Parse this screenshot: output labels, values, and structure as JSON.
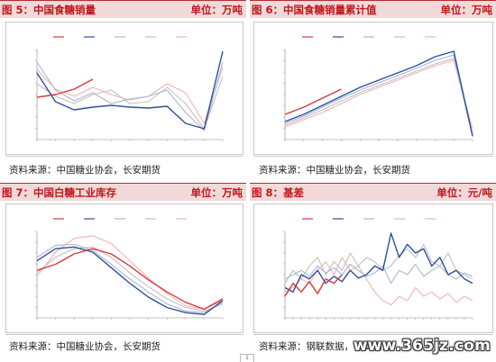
{
  "panels": [
    {
      "title": "图 5：中国食糖销量",
      "unit": "单位：万吨",
      "source": "资料来源：中国糖业协会，长安期货",
      "chart_data": {
        "type": "line",
        "ylim": [
          0,
          1
        ],
        "categories": [
          "",
          "",
          "",
          "",
          "",
          "",
          "",
          "",
          "",
          "",
          ""
        ],
        "series": [
          {
            "name": "",
            "color": "#d9383a",
            "values": [
              0.47,
              0.5,
              0.56,
              0.67,
              null,
              null,
              null,
              null,
              null,
              null,
              null
            ]
          },
          {
            "name": "",
            "color": "#2c4f9e",
            "values": [
              0.74,
              0.42,
              0.33,
              0.36,
              0.38,
              0.36,
              0.35,
              0.37,
              0.18,
              0.12,
              0.98
            ]
          },
          {
            "name": "",
            "color": "#a9b6d6",
            "values": [
              0.86,
              0.55,
              0.43,
              0.52,
              0.4,
              0.45,
              0.48,
              0.55,
              0.3,
              0.1,
              0.86
            ]
          },
          {
            "name": "",
            "color": "#c0c0c0",
            "values": [
              0.62,
              0.48,
              0.4,
              0.5,
              0.55,
              0.4,
              0.42,
              0.58,
              0.4,
              0.12,
              0.7
            ]
          },
          {
            "name": "",
            "color": "#f3b3b0",
            "values": [
              0.78,
              0.56,
              0.48,
              0.58,
              0.5,
              0.44,
              0.48,
              0.62,
              0.52,
              0.18,
              0.8
            ]
          }
        ]
      }
    },
    {
      "title": "图 6：中国食糖销量累计值",
      "unit": "单位：万吨",
      "source": "资料来源：中国糖业协会，长安期货",
      "chart_data": {
        "type": "line",
        "ylim": [
          0,
          1
        ],
        "categories": [
          "",
          "",
          "",
          "",
          "",
          "",
          "",
          "",
          "",
          "",
          ""
        ],
        "series": [
          {
            "name": "",
            "color": "#d9383a",
            "values": [
              0.28,
              0.36,
              0.46,
              0.56,
              null,
              null,
              null,
              null,
              null,
              null,
              null
            ]
          },
          {
            "name": "",
            "color": "#2c4f9e",
            "values": [
              0.2,
              0.28,
              0.38,
              0.48,
              0.58,
              0.66,
              0.74,
              0.82,
              0.92,
              0.98,
              0.04
            ]
          },
          {
            "name": "",
            "color": "#a9b6d6",
            "values": [
              0.18,
              0.26,
              0.36,
              0.46,
              0.55,
              0.63,
              0.71,
              0.79,
              0.88,
              0.94,
              0.03
            ]
          },
          {
            "name": "",
            "color": "#c0c0c0",
            "values": [
              0.16,
              0.24,
              0.33,
              0.43,
              0.52,
              0.6,
              0.68,
              0.76,
              0.84,
              0.9,
              0.06
            ]
          },
          {
            "name": "",
            "color": "#f3b3b0",
            "values": [
              0.14,
              0.22,
              0.3,
              0.4,
              0.5,
              0.58,
              0.66,
              0.74,
              0.82,
              0.88,
              0.12
            ]
          }
        ]
      }
    },
    {
      "title": "图 7：中国白糖工业库存",
      "unit": "单位：万吨",
      "source": "资料来源：中国糖业协会，长安期货",
      "chart_data": {
        "type": "line",
        "ylim": [
          0,
          1
        ],
        "categories": [
          "",
          "",
          "",
          "",
          "",
          "",
          "",
          "",
          "",
          "",
          ""
        ],
        "series": [
          {
            "name": "",
            "color": "#d9383a",
            "values": [
              0.55,
              0.62,
              0.74,
              0.8,
              0.74,
              0.6,
              0.44,
              0.3,
              0.18,
              0.1,
              0.22
            ]
          },
          {
            "name": "",
            "color": "#2c4f9e",
            "values": [
              0.66,
              0.8,
              0.82,
              0.76,
              0.58,
              0.4,
              0.24,
              0.12,
              0.06,
              0.04,
              0.2
            ]
          },
          {
            "name": "",
            "color": "#a9b6d6",
            "values": [
              0.7,
              0.84,
              0.85,
              0.78,
              0.62,
              0.45,
              0.3,
              0.16,
              0.08,
              0.06,
              0.18
            ]
          },
          {
            "name": "",
            "color": "#c0c0c0",
            "values": [
              0.52,
              0.7,
              0.8,
              0.82,
              0.7,
              0.52,
              0.36,
              0.22,
              0.12,
              0.08,
              0.16
            ]
          },
          {
            "name": "",
            "color": "#f3b3b0",
            "values": [
              0.48,
              0.76,
              0.92,
              0.95,
              0.86,
              0.66,
              0.46,
              0.28,
              0.14,
              0.1,
              0.2
            ]
          }
        ]
      }
    },
    {
      "title": "图 8：基差",
      "unit": "单位：元/吨",
      "source": "资料来源：钢联数据，长安期货",
      "chart_data": {
        "type": "line",
        "ylim": [
          0,
          1
        ],
        "categories": [
          "",
          "",
          "",
          "",
          "",
          "",
          "",
          "",
          "",
          "",
          "",
          "",
          "",
          "",
          "",
          "",
          "",
          "",
          "",
          "",
          "",
          "",
          "",
          ""
        ],
        "series": [
          {
            "name": "",
            "color": "#d9383a",
            "values": [
              0.25,
              0.4,
              0.3,
              0.42,
              0.28,
              0.45,
              0.4,
              0.5,
              null,
              null,
              null,
              null,
              null,
              null,
              null,
              null,
              null,
              null,
              null,
              null,
              null,
              null,
              null,
              null
            ]
          },
          {
            "name": "",
            "color": "#2c4f9e",
            "values": [
              0.35,
              0.3,
              0.5,
              0.45,
              0.55,
              0.4,
              0.48,
              0.42,
              0.55,
              0.46,
              0.5,
              0.6,
              0.55,
              0.98,
              0.7,
              0.85,
              0.75,
              0.8,
              0.6,
              0.7,
              0.5,
              0.55,
              0.45,
              0.4
            ]
          },
          {
            "name": "",
            "color": "#a9b6d6",
            "values": [
              0.45,
              0.5,
              0.55,
              0.48,
              0.6,
              0.52,
              0.58,
              0.5,
              0.62,
              0.55,
              0.48,
              0.52,
              0.6,
              0.4,
              0.55,
              0.5,
              0.62,
              0.48,
              0.55,
              0.6,
              0.5,
              0.45,
              0.52,
              0.48
            ]
          },
          {
            "name": "",
            "color": "#c0c0c0",
            "values": [
              0.4,
              0.55,
              0.45,
              0.6,
              0.7,
              0.5,
              0.65,
              0.55,
              0.75,
              0.6,
              0.7,
              0.65,
              0.55,
              0.6,
              0.72,
              0.8,
              0.7,
              0.85,
              0.65,
              0.6,
              0.75,
              0.55,
              0.5,
              0.45
            ]
          },
          {
            "name": "",
            "color": "#f3b3b0",
            "values": [
              0.3,
              0.35,
              0.45,
              0.4,
              0.55,
              0.65,
              0.5,
              0.7,
              0.55,
              0.6,
              0.45,
              0.3,
              0.2,
              0.15,
              0.25,
              0.2,
              0.35,
              0.25,
              0.3,
              0.22,
              0.28,
              0.18,
              0.25,
              0.2
            ]
          }
        ]
      }
    }
  ],
  "watermark": "www.365jz.com",
  "pager": "1"
}
